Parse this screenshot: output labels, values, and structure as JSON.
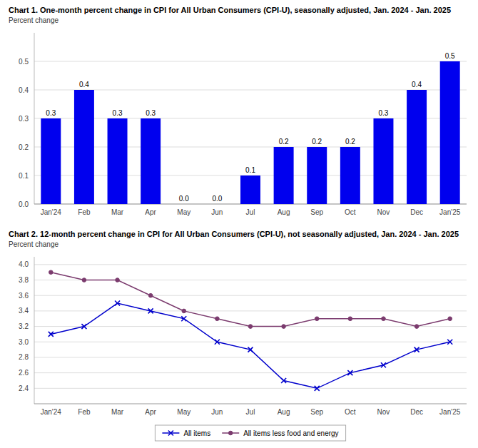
{
  "chart_data": [
    {
      "type": "bar",
      "title": "Chart 1. One-month percent change in CPI for All Urban Consumers (CPI-U), seasonally adjusted, Jan. 2024 - Jan. 2025",
      "ylabel": "Percent change",
      "categories": [
        "Jan'24",
        "Feb",
        "Mar",
        "Apr",
        "May",
        "Jun",
        "Jul",
        "Aug",
        "Sep",
        "Oct",
        "Nov",
        "Dec",
        "Jan'25"
      ],
      "values": [
        0.3,
        0.4,
        0.3,
        0.3,
        0.0,
        0.0,
        0.1,
        0.2,
        0.2,
        0.2,
        0.3,
        0.4,
        0.5
      ],
      "value_labels": [
        "0.3",
        "0.4",
        "0.3",
        "0.3",
        "0.0",
        "0.0",
        "0.1",
        "0.2",
        "0.2",
        "0.2",
        "0.3",
        "0.4",
        "0.5"
      ],
      "color": "#0000EE",
      "ylim": [
        0.0,
        0.6
      ],
      "yticks": [
        {
          "value": 0.0,
          "label": "0.0"
        },
        0.1,
        0.2,
        0.3,
        0.4,
        0.5
      ],
      "grid": true,
      "data_labels": true
    },
    {
      "type": "line",
      "title": "Chart 2. 12-month percent change in CPI for All Urban Consumers (CPI-U), not seasonally adjusted, Jan. 2024 - Jan. 2025",
      "ylabel": "Percent change",
      "categories": [
        "Jan'24",
        "Feb",
        "Mar",
        "Apr",
        "May",
        "Jun",
        "Jul",
        "Aug",
        "Sep",
        "Oct",
        "Nov",
        "Dec",
        "Jan'25"
      ],
      "series": [
        {
          "name": "All items",
          "color": "#0000CC",
          "marker": "x",
          "values": [
            3.1,
            3.2,
            3.5,
            3.4,
            3.3,
            3.0,
            2.9,
            2.5,
            2.4,
            2.6,
            2.7,
            2.9,
            3.0
          ]
        },
        {
          "name": "All items less food and energy",
          "color": "#7B3B6E",
          "marker": "o",
          "values": [
            3.9,
            3.8,
            3.8,
            3.6,
            3.4,
            3.3,
            3.2,
            3.2,
            3.3,
            3.3,
            3.3,
            3.2,
            3.3
          ]
        }
      ],
      "ylim": [
        2.2,
        4.1
      ],
      "yticks": [
        2.4,
        2.6,
        2.8,
        {
          "value": 3.0,
          "label": "3.0"
        },
        3.2,
        3.4,
        3.6,
        3.8,
        {
          "value": 4.0,
          "label": "4.0"
        }
      ],
      "grid": true,
      "legend": "bottom"
    }
  ]
}
